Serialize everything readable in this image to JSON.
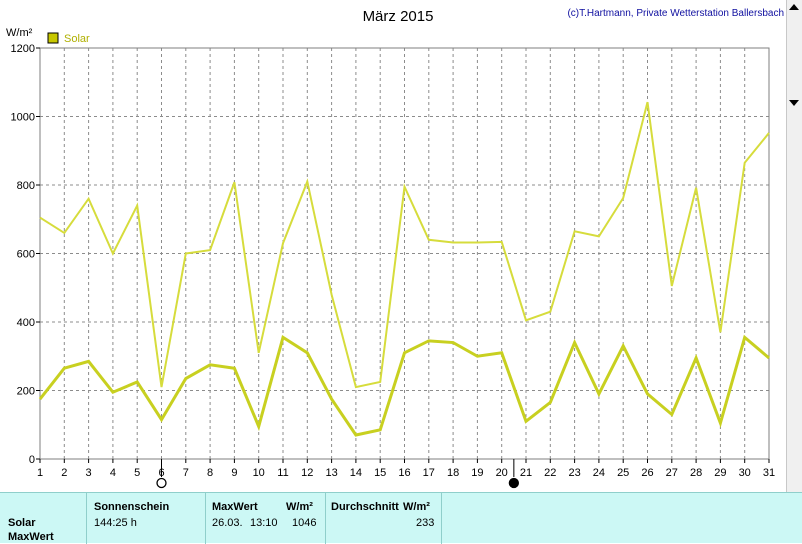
{
  "chart_data": {
    "type": "line",
    "title": "März 2015",
    "credit": "(c)T.Hartmann, Private Wetterstation Ballersbach",
    "ylabel": "W/m²",
    "ylim": [
      0,
      1200
    ],
    "yticks": [
      0,
      200,
      400,
      600,
      800,
      1000,
      1200
    ],
    "grid": true,
    "legend": {
      "label": "Solar",
      "color": "#c8c800",
      "placement": "top-left"
    },
    "x": [
      1,
      2,
      3,
      4,
      5,
      6,
      7,
      8,
      9,
      10,
      11,
      12,
      13,
      14,
      15,
      16,
      17,
      18,
      19,
      20,
      21,
      22,
      23,
      24,
      25,
      26,
      27,
      28,
      29,
      30,
      31
    ],
    "series": [
      {
        "role": "max",
        "color": "#d6dc3c",
        "values": [
          705,
          660,
          760,
          600,
          740,
          210,
          600,
          610,
          808,
          310,
          630,
          810,
          480,
          210,
          225,
          795,
          640,
          632,
          632,
          634,
          405,
          430,
          665,
          650,
          762,
          1042,
          505,
          792,
          370,
          865,
          952
        ]
      },
      {
        "role": "avg",
        "color": "#c8d020",
        "values": [
          175,
          265,
          285,
          195,
          225,
          115,
          235,
          275,
          265,
          95,
          355,
          310,
          175,
          70,
          85,
          310,
          345,
          340,
          300,
          310,
          110,
          165,
          340,
          190,
          330,
          190,
          130,
          295,
          105,
          355,
          295
        ]
      }
    ],
    "moon_markers": [
      {
        "day": 6,
        "phase": "full-moon-icon"
      },
      {
        "day": 20.5,
        "phase": "new-moon-icon"
      }
    ]
  },
  "footer": {
    "row_labels": [
      "Solar",
      "MaxWert"
    ],
    "sun_header": "Sonnenschein",
    "sun_value": "144:25 h",
    "max_header": "MaxWert",
    "max_unit": "W/m²",
    "max_date": "26.03.",
    "max_time": "13:10",
    "max_value": "1046",
    "avg_header": "Durchschnitt",
    "avg_unit": "W/m²",
    "avg_value": "233"
  }
}
